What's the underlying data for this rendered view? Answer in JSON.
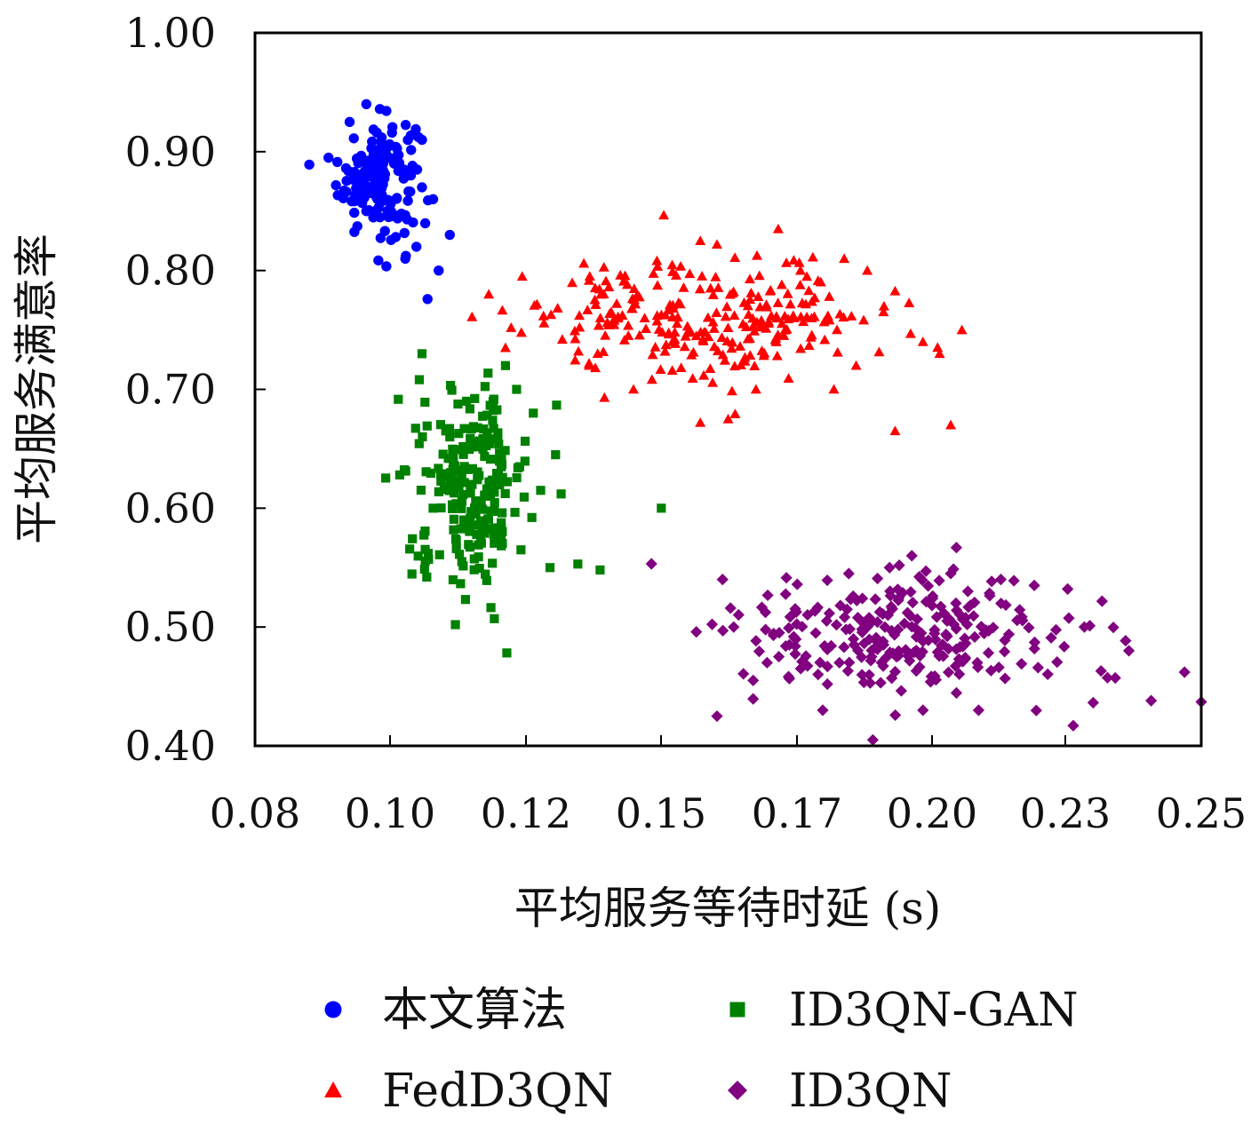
{
  "chart_data": {
    "type": "scatter",
    "title": "",
    "xlabel": "平均服务等待时延 (s)",
    "ylabel": "平均服务满意率",
    "xlim": [
      0.08,
      0.25
    ],
    "ylim": [
      0.4,
      1.0
    ],
    "x_ticks": [
      "0.08",
      "0.10",
      "0.12",
      "0.15",
      "0.17",
      "0.20",
      "0.23",
      "0.25"
    ],
    "y_ticks": [
      "1.00",
      "0.90",
      "0.80",
      "0.70",
      "0.60",
      "0.50",
      "0.40"
    ],
    "grid": false,
    "legend_position": "bottom",
    "series": [
      {
        "name": "本文算法",
        "marker": "circle",
        "color": "#0000ff",
        "cluster": {
          "x_mean": 0.102,
          "y_mean": 0.88,
          "x_sd": 0.0035,
          "y_sd": 0.025,
          "n": 150
        },
        "points": [
          [
            0.097,
            0.925
          ],
          [
            0.1,
            0.94
          ],
          [
            0.099,
            0.895
          ],
          [
            0.103,
            0.905
          ],
          [
            0.105,
            0.89
          ],
          [
            0.108,
            0.88
          ],
          [
            0.11,
            0.87
          ],
          [
            0.112,
            0.86
          ],
          [
            0.1,
            0.85
          ],
          [
            0.104,
            0.845
          ],
          [
            0.109,
            0.82
          ],
          [
            0.113,
            0.8
          ],
          [
            0.111,
            0.776
          ],
          [
            0.115,
            0.83
          ],
          [
            0.107,
            0.81
          ],
          [
            0.11,
            0.91
          ],
          [
            0.098,
            0.88
          ],
          [
            0.102,
            0.86
          ]
        ]
      },
      {
        "name": "ID3QN-GAN",
        "marker": "square",
        "color": "#008000",
        "cluster": {
          "x_mean": 0.119,
          "y_mean": 0.62,
          "x_sd": 0.005,
          "y_sd": 0.04,
          "n": 220
        },
        "points": [
          [
            0.11,
            0.73
          ],
          [
            0.125,
            0.72
          ],
          [
            0.127,
            0.7
          ],
          [
            0.13,
            0.68
          ],
          [
            0.106,
            0.628
          ],
          [
            0.112,
            0.6
          ],
          [
            0.116,
            0.502
          ],
          [
            0.123,
            0.507
          ],
          [
            0.133,
            0.55
          ],
          [
            0.138,
            0.553
          ],
          [
            0.142,
            0.548
          ],
          [
            0.135,
            0.612
          ],
          [
            0.134,
            0.645
          ],
          [
            0.153,
            0.6
          ],
          [
            0.118,
            0.69
          ],
          [
            0.115,
            0.66
          ],
          [
            0.121,
            0.58
          ],
          [
            0.119,
            0.62
          ]
        ]
      },
      {
        "name": "FedD3QN",
        "marker": "triangle",
        "color": "#ff0000",
        "cluster": {
          "x_mean": 0.162,
          "y_mean": 0.76,
          "x_sd": 0.016,
          "y_sd": 0.025,
          "n": 250
        },
        "points": [
          [
            0.122,
            0.78
          ],
          [
            0.128,
            0.795
          ],
          [
            0.125,
            0.735
          ],
          [
            0.14,
            0.72
          ],
          [
            0.148,
            0.7
          ],
          [
            0.16,
            0.825
          ],
          [
            0.163,
            0.822
          ],
          [
            0.174,
            0.835
          ],
          [
            0.178,
            0.8
          ],
          [
            0.19,
            0.8
          ],
          [
            0.193,
            0.77
          ],
          [
            0.2,
            0.74
          ],
          [
            0.203,
            0.73
          ],
          [
            0.205,
            0.67
          ],
          [
            0.207,
            0.75
          ],
          [
            0.184,
            0.7
          ],
          [
            0.195,
            0.665
          ],
          [
            0.17,
            0.7
          ],
          [
            0.165,
            0.675
          ],
          [
            0.16,
            0.672
          ],
          [
            0.15,
            0.76
          ],
          [
            0.155,
            0.74
          ],
          [
            0.18,
            0.76
          ],
          [
            0.188,
            0.72
          ]
        ]
      },
      {
        "name": "ID3QN",
        "marker": "diamond",
        "color": "#800080",
        "cluster": {
          "x_mean": 0.197,
          "y_mean": 0.495,
          "x_sd": 0.016,
          "y_sd": 0.027,
          "n": 250
        },
        "points": [
          [
            0.164,
            0.54
          ],
          [
            0.166,
            0.5
          ],
          [
            0.163,
            0.425
          ],
          [
            0.172,
            0.47
          ],
          [
            0.176,
            0.485
          ],
          [
            0.182,
            0.43
          ],
          [
            0.191,
            0.405
          ],
          [
            0.194,
            0.55
          ],
          [
            0.198,
            0.56
          ],
          [
            0.205,
            0.545
          ],
          [
            0.214,
            0.54
          ],
          [
            0.22,
            0.535
          ],
          [
            0.226,
            0.532
          ],
          [
            0.229,
            0.5
          ],
          [
            0.232,
            0.463
          ],
          [
            0.237,
            0.48
          ],
          [
            0.241,
            0.438
          ],
          [
            0.247,
            0.462
          ],
          [
            0.25,
            0.437
          ],
          [
            0.227,
            0.417
          ],
          [
            0.21,
            0.43
          ],
          [
            0.2,
            0.43
          ],
          [
            0.185,
            0.47
          ],
          [
            0.19,
            0.5
          ]
        ]
      }
    ]
  }
}
